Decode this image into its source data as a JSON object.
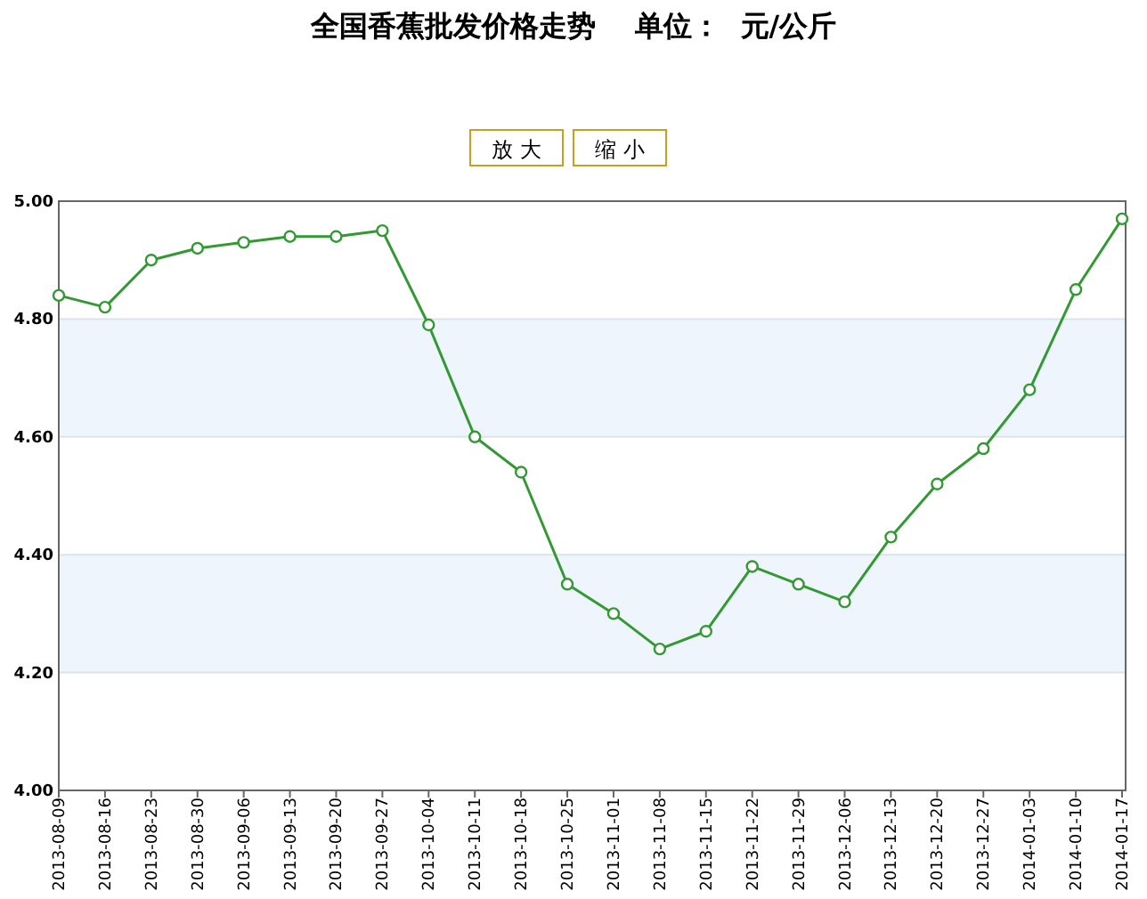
{
  "chart_data": {
    "type": "line",
    "title": "全国香蕉批发价格走势    单位：  元/公斤",
    "annotations": [
      "放 大",
      "缩 小"
    ],
    "categories": [
      "2013-08-09",
      "2013-08-16",
      "2013-08-23",
      "2013-08-30",
      "2013-09-06",
      "2013-09-13",
      "2013-09-20",
      "2013-09-27",
      "2013-10-04",
      "2013-10-11",
      "2013-10-18",
      "2013-10-25",
      "2013-11-01",
      "2013-11-08",
      "2013-11-15",
      "2013-11-22",
      "2013-11-29",
      "2013-12-06",
      "2013-12-13",
      "2013-12-20",
      "2013-12-27",
      "2014-01-03",
      "2014-01-10",
      "2014-01-17"
    ],
    "series": [
      {
        "color": "#339933",
        "values": [
          4.84,
          4.82,
          4.9,
          4.92,
          4.93,
          4.94,
          4.94,
          4.95,
          4.79,
          4.6,
          4.54,
          4.35,
          4.3,
          4.24,
          4.27,
          4.38,
          4.35,
          4.32,
          4.43,
          4.52,
          4.58,
          4.68,
          4.85,
          4.97
        ]
      }
    ],
    "ylim": [
      4.0,
      5.0
    ],
    "yticks": [
      {
        "value": 4.0,
        "label": "4.00"
      },
      {
        "value": 4.2,
        "label": "4.20"
      },
      {
        "value": 4.4,
        "label": "4.40"
      },
      {
        "value": 4.6,
        "label": "4.60"
      },
      {
        "value": 4.8,
        "label": "4.80"
      },
      {
        "value": 5.0,
        "label": "5.00"
      }
    ],
    "bands": [
      {
        "axis": "y",
        "from": 4.2,
        "to": 4.4,
        "color": "#eef5fc"
      },
      {
        "axis": "y",
        "from": 4.6,
        "to": 4.8,
        "color": "#eef5fc"
      }
    ],
    "grid": "y",
    "marker": "circle",
    "line_style": "solid"
  }
}
